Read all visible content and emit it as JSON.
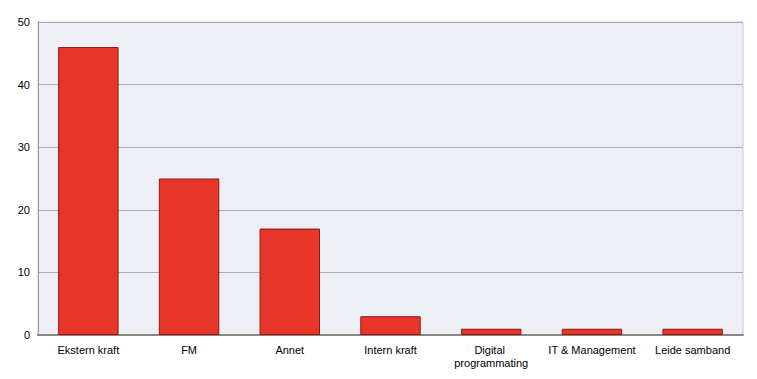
{
  "chart_data": {
    "type": "bar",
    "categories": [
      "Ekstern kraft",
      "FM",
      "Annet",
      "Intern kraft",
      "Digital programmating",
      "IT & Management",
      "Leide samband"
    ],
    "values": [
      46,
      25,
      17,
      3,
      1,
      1,
      1
    ],
    "color": "#e8352a",
    "ylim": [
      0,
      50
    ],
    "yticks": [
      0,
      10,
      20,
      30,
      40,
      50
    ],
    "grid": true
  }
}
